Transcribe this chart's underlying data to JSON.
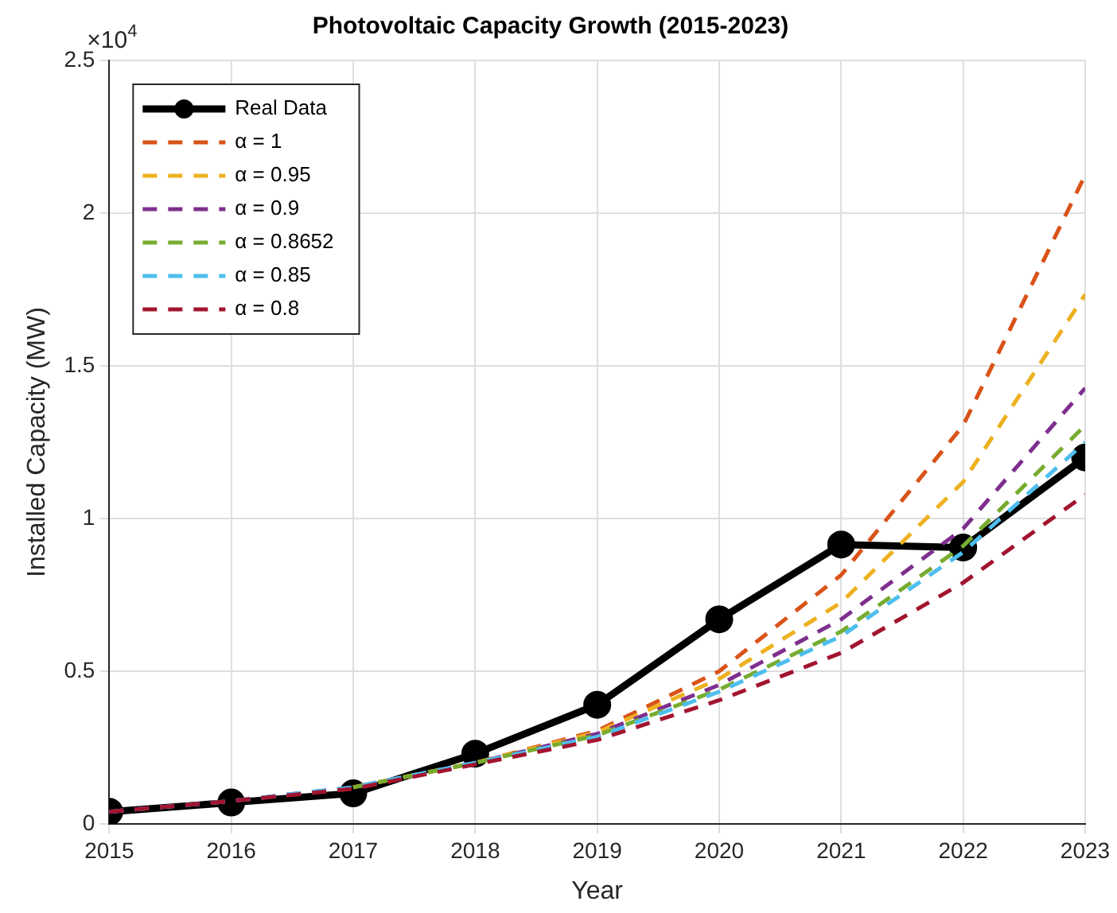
{
  "chart_data": {
    "type": "line",
    "title": "Photovoltaic Capacity Growth (2015-2023)",
    "xlabel": "Year",
    "ylabel": "Installed Capacity (MW)",
    "x": [
      2015,
      2016,
      2017,
      2018,
      2019,
      2020,
      2021,
      2022,
      2023
    ],
    "xlim": [
      2015,
      2023
    ],
    "xticks": [
      2015,
      2016,
      2017,
      2018,
      2019,
      2020,
      2021,
      2022,
      2023
    ],
    "ylim": [
      0,
      2.5
    ],
    "yticks": [
      0,
      0.5,
      1,
      1.5,
      2,
      2.5
    ],
    "annotations": [
      "×10$^{4}$"
    ],
    "grid": true,
    "legend": "top left",
    "series": [
      {
        "name": "Real Data",
        "color": "#000000",
        "marker": "circle",
        "line_style": "solid",
        "values": [
          0.04,
          0.07,
          0.1,
          0.23,
          0.39,
          0.67,
          0.915,
          0.905,
          1.2
        ]
      },
      {
        "name": "α = 1",
        "color": "#d95319",
        "marker": "none",
        "line_style": "dashed",
        "values": [
          null,
          null,
          0.12,
          0.2,
          0.305,
          0.5,
          0.815,
          1.305,
          2.125
        ]
      },
      {
        "name": "α = 0.95",
        "color": "#edb120",
        "marker": "none",
        "line_style": "dashed",
        "values": [
          null,
          null,
          0.12,
          0.2,
          0.3,
          0.475,
          0.725,
          1.12,
          1.734
        ]
      },
      {
        "name": "α = 0.9",
        "color": "#7e2f8e",
        "marker": "none",
        "line_style": "dashed",
        "values": [
          0.04,
          0.075,
          0.12,
          0.2,
          0.295,
          0.455,
          0.67,
          0.967,
          1.427
        ]
      },
      {
        "name": "α = 0.8652",
        "color": "#77ac30",
        "marker": "none",
        "line_style": "dashed",
        "values": [
          null,
          null,
          0.12,
          0.2,
          0.29,
          0.44,
          0.63,
          0.91,
          1.305
        ]
      },
      {
        "name": "α = 0.85",
        "color": "#4dbeee",
        "marker": "none",
        "line_style": "dashed",
        "values": [
          0.04,
          0.075,
          0.12,
          0.2,
          0.285,
          0.433,
          0.615,
          0.89,
          1.25
        ]
      },
      {
        "name": "α = 0.8",
        "color": "#a2142f",
        "marker": "none",
        "line_style": "dashed",
        "values": [
          0.04,
          0.075,
          0.115,
          0.195,
          0.275,
          0.405,
          0.56,
          0.79,
          1.078
        ]
      }
    ]
  }
}
